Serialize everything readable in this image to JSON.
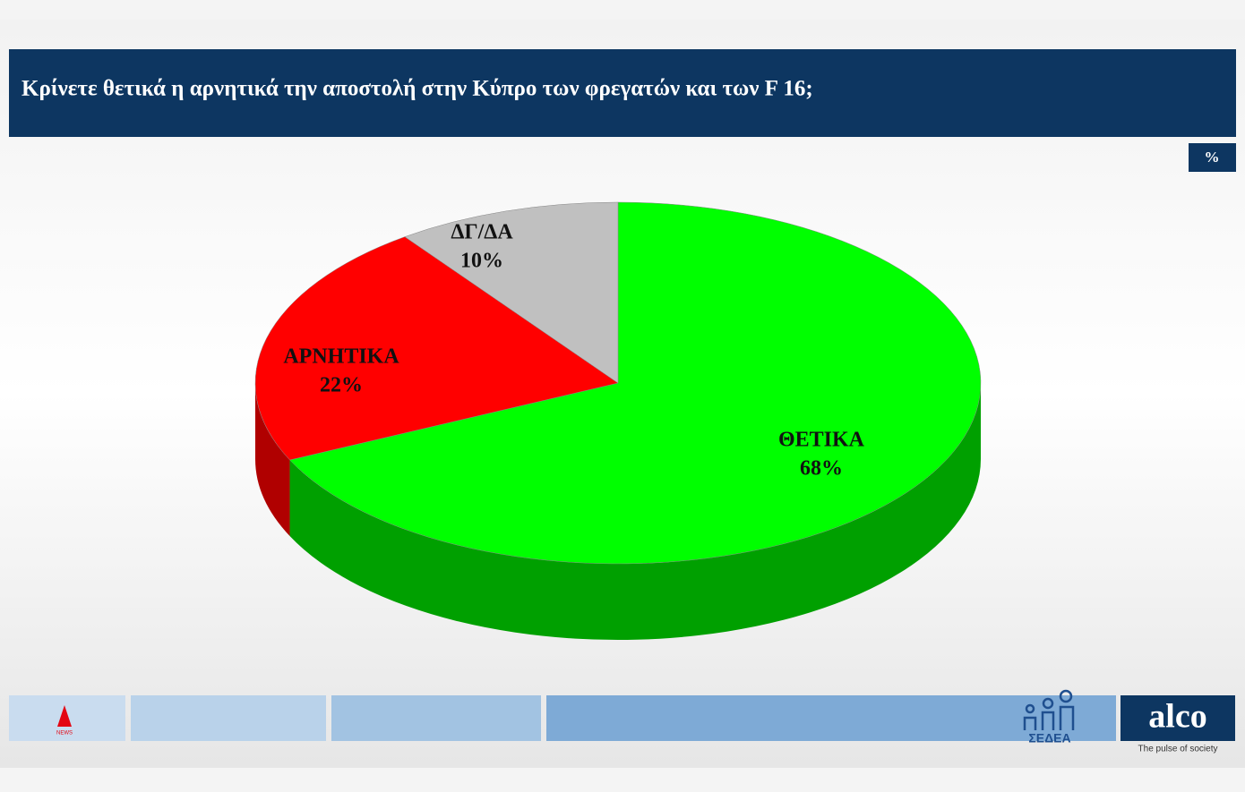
{
  "chart_data": {
    "type": "pie3d",
    "title": "Κρίνετε θετικά η αρνητικά την αποστολή στην Κύπρο των  φρεγατών και των F 16;",
    "unit": "%",
    "categories": [
      "ΘΕΤΙΚΑ",
      "ΑΡΝΗΤΙΚΑ",
      "ΔΓ/ΔΑ"
    ],
    "values": [
      68,
      22,
      10
    ],
    "value_labels": [
      "68%",
      "22%",
      "10%"
    ],
    "colors": [
      "#00ff00",
      "#ff0000",
      "#c0c0c0"
    ],
    "side_colors": [
      "#00a000",
      "#b00000",
      "#808080"
    ]
  },
  "footer": {
    "alpha_logo": "NEWS",
    "sedea_logo": "ΣΕΔΕΑ",
    "alco_logo": "alco",
    "alco_tagline": "The pulse of society"
  }
}
